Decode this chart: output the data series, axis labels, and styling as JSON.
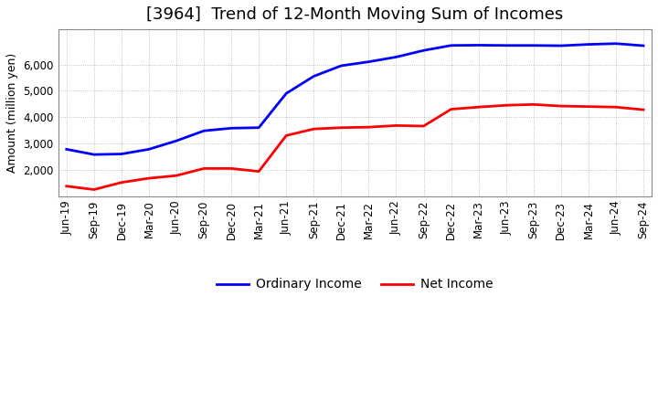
{
  "title": "[3964]  Trend of 12-Month Moving Sum of Incomes",
  "ylabel": "Amount (million yen)",
  "background_color": "#ffffff",
  "grid_color": "#b0b0b0",
  "x_labels": [
    "Jun-19",
    "Sep-19",
    "Dec-19",
    "Mar-20",
    "Jun-20",
    "Sep-20",
    "Dec-20",
    "Mar-21",
    "Jun-21",
    "Sep-21",
    "Dec-21",
    "Mar-22",
    "Jun-22",
    "Sep-22",
    "Dec-22",
    "Mar-23",
    "Jun-23",
    "Sep-23",
    "Dec-23",
    "Mar-24",
    "Jun-24",
    "Sep-24"
  ],
  "ordinary_income": [
    2780,
    2580,
    2600,
    2780,
    3100,
    3480,
    3580,
    3600,
    4900,
    5550,
    5950,
    6100,
    6280,
    6530,
    6720,
    6730,
    6720,
    6720,
    6710,
    6760,
    6790,
    6710
  ],
  "net_income": [
    1380,
    1250,
    1520,
    1680,
    1780,
    2050,
    2050,
    1940,
    3300,
    3550,
    3600,
    3620,
    3680,
    3660,
    4300,
    4380,
    4450,
    4480,
    4420,
    4400,
    4380,
    4280
  ],
  "ordinary_color": "#0000ff",
  "net_color": "#ff0000",
  "line_width": 2.0,
  "ylim_min": 1000,
  "ylim_max": 7333,
  "yticks": [
    2000,
    3000,
    4000,
    5000,
    6000
  ],
  "title_fontsize": 13,
  "tick_fontsize": 8.5,
  "ylabel_fontsize": 9,
  "legend_labels": [
    "Ordinary Income",
    "Net Income"
  ]
}
